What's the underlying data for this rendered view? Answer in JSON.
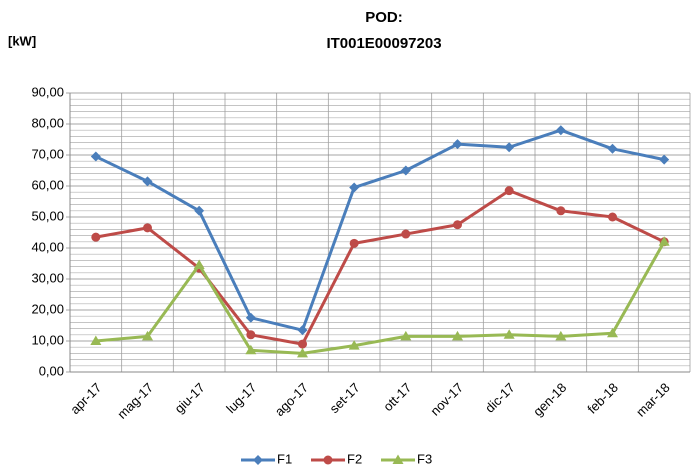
{
  "chart_data": {
    "type": "line",
    "title": [
      "POD:",
      "IT001E00097203"
    ],
    "y_label": "[kW]",
    "categories": [
      "apr-17",
      "mag-17",
      "giu-17",
      "lug-17",
      "ago-17",
      "set-17",
      "ott-17",
      "nov-17",
      "dic-17",
      "gen-18",
      "feb-18",
      "mar-18"
    ],
    "series": [
      {
        "name": "F1",
        "color": "#4a7ebb",
        "marker": "diamond",
        "values": [
          69.5,
          61.5,
          52,
          17.5,
          13.5,
          59.5,
          65,
          73.5,
          72.5,
          78,
          72,
          68.5
        ]
      },
      {
        "name": "F2",
        "color": "#be4b48",
        "marker": "circle",
        "values": [
          43.5,
          46.5,
          33.5,
          12,
          9,
          41.5,
          44.5,
          47.5,
          58.5,
          52,
          50,
          42
        ]
      },
      {
        "name": "F3",
        "color": "#98b954",
        "marker": "triangle",
        "values": [
          10,
          11.5,
          34.5,
          7,
          6,
          8.5,
          11.5,
          11.5,
          12,
          11.5,
          12.5,
          42
        ]
      }
    ],
    "ylim": [
      0,
      90
    ],
    "yticks": [
      {
        "value": 0,
        "label": "0,00"
      },
      {
        "value": 10,
        "label": "10,00"
      },
      {
        "value": 20,
        "label": "20,00"
      },
      {
        "value": 30,
        "label": "30,00"
      },
      {
        "value": 40,
        "label": "40,00"
      },
      {
        "value": 50,
        "label": "50,00"
      },
      {
        "value": 60,
        "label": "60,00"
      },
      {
        "value": 70,
        "label": "70,00"
      },
      {
        "value": 80,
        "label": "80,00"
      },
      {
        "value": 90,
        "label": "90,00"
      }
    ],
    "grid": true,
    "minor_grid": true,
    "legend": "bottom"
  }
}
